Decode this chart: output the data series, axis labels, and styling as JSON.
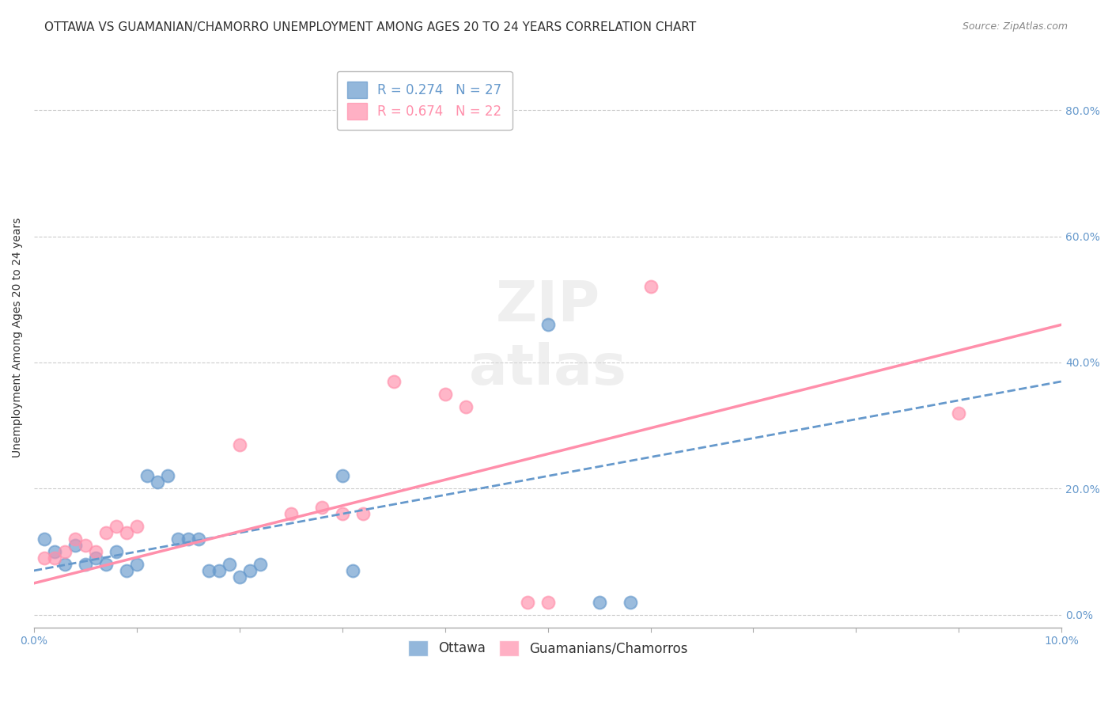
{
  "title": "OTTAWA VS GUAMANIAN/CHAMORRO UNEMPLOYMENT AMONG AGES 20 TO 24 YEARS CORRELATION CHART",
  "source": "Source: ZipAtlas.com",
  "ylabel": "Unemployment Among Ages 20 to 24 years",
  "xlim": [
    0.0,
    0.1
  ],
  "ylim": [
    -0.02,
    0.9
  ],
  "yticks_right": [
    0.0,
    0.2,
    0.4,
    0.6,
    0.8
  ],
  "ytick_right_labels": [
    "0.0%",
    "20.0%",
    "40.0%",
    "60.0%",
    "80.0%"
  ],
  "ottawa_R": 0.274,
  "ottawa_N": 27,
  "guam_R": 0.674,
  "guam_N": 22,
  "ottawa_color": "#6699CC",
  "guam_color": "#FF8FAB",
  "ottawa_scatter": [
    [
      0.001,
      0.12
    ],
    [
      0.002,
      0.1
    ],
    [
      0.003,
      0.08
    ],
    [
      0.004,
      0.11
    ],
    [
      0.005,
      0.08
    ],
    [
      0.006,
      0.09
    ],
    [
      0.007,
      0.08
    ],
    [
      0.008,
      0.1
    ],
    [
      0.009,
      0.07
    ],
    [
      0.01,
      0.08
    ],
    [
      0.011,
      0.22
    ],
    [
      0.012,
      0.21
    ],
    [
      0.013,
      0.22
    ],
    [
      0.014,
      0.12
    ],
    [
      0.015,
      0.12
    ],
    [
      0.016,
      0.12
    ],
    [
      0.017,
      0.07
    ],
    [
      0.018,
      0.07
    ],
    [
      0.019,
      0.08
    ],
    [
      0.02,
      0.06
    ],
    [
      0.021,
      0.07
    ],
    [
      0.022,
      0.08
    ],
    [
      0.03,
      0.22
    ],
    [
      0.031,
      0.07
    ],
    [
      0.05,
      0.46
    ],
    [
      0.055,
      0.02
    ],
    [
      0.058,
      0.02
    ]
  ],
  "guam_scatter": [
    [
      0.001,
      0.09
    ],
    [
      0.002,
      0.09
    ],
    [
      0.003,
      0.1
    ],
    [
      0.004,
      0.12
    ],
    [
      0.005,
      0.11
    ],
    [
      0.006,
      0.1
    ],
    [
      0.007,
      0.13
    ],
    [
      0.008,
      0.14
    ],
    [
      0.009,
      0.13
    ],
    [
      0.01,
      0.14
    ],
    [
      0.02,
      0.27
    ],
    [
      0.025,
      0.16
    ],
    [
      0.028,
      0.17
    ],
    [
      0.03,
      0.16
    ],
    [
      0.032,
      0.16
    ],
    [
      0.035,
      0.37
    ],
    [
      0.04,
      0.35
    ],
    [
      0.042,
      0.33
    ],
    [
      0.048,
      0.02
    ],
    [
      0.05,
      0.02
    ],
    [
      0.06,
      0.52
    ],
    [
      0.09,
      0.32
    ]
  ],
  "ottawa_line_x": [
    0.0,
    0.1
  ],
  "ottawa_line_y": [
    0.07,
    0.37
  ],
  "guam_line_x": [
    0.0,
    0.1
  ],
  "guam_line_y": [
    0.05,
    0.46
  ],
  "background_color": "#FFFFFF",
  "grid_color": "#CCCCCC",
  "title_fontsize": 11,
  "axis_label_fontsize": 10,
  "tick_fontsize": 10,
  "legend_fontsize": 12
}
